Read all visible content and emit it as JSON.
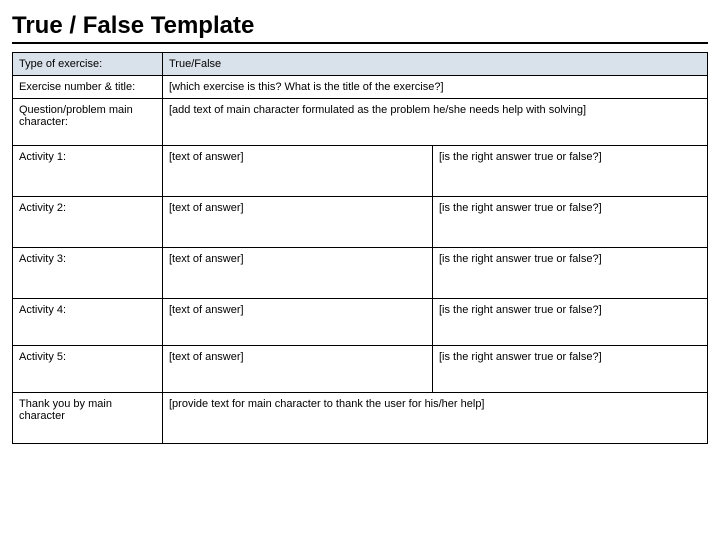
{
  "title": "True / False Template",
  "colors": {
    "border": "#000000",
    "shaded_bg": "#d9e1ea",
    "text": "#000000",
    "page_bg": "#ffffff"
  },
  "rows": {
    "type_of_exercise": {
      "label": "Type of exercise:",
      "value": "True/False"
    },
    "exercise_number": {
      "label": "Exercise number & title:",
      "value": "[which exercise is this? What is the title of the exercise?]"
    },
    "question": {
      "label": "Question/problem main character:",
      "value": "[add text of main character formulated as the problem he/she needs help with solving]"
    },
    "activities": [
      {
        "label": "Activity 1:",
        "answer": "[text of answer]",
        "truth": "[is the right answer true or false?]"
      },
      {
        "label": "Activity 2:",
        "answer": "[text of answer]",
        "truth": "[is the right answer true or false?]"
      },
      {
        "label": "Activity 3:",
        "answer": "[text of answer]",
        "truth": "[is the right answer true or false?]"
      },
      {
        "label": "Activity 4:",
        "answer": "[text of answer]",
        "truth": "[is the right answer true or false?]"
      },
      {
        "label": "Activity 5:",
        "answer": "[text of answer]",
        "truth": "[is the right answer true or false?]"
      }
    ],
    "thankyou": {
      "label": "Thank you by main character",
      "value": "[provide text for main character to thank the user for his/her help]"
    }
  }
}
